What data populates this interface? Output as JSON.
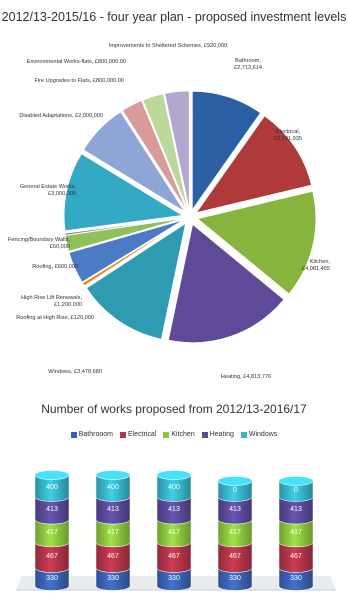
{
  "chart_data": [
    {
      "type": "pie",
      "title": "2012/13-2015/16 - four year plan - proposed investment levels",
      "slices": [
        {
          "label": "Bathroom, £2,713,614",
          "value": 2713614,
          "color": "#2a5fa3"
        },
        {
          "label": "Electrical, £3,191,935",
          "value": 3191935,
          "color": "#b03a3a"
        },
        {
          "label": "Kitchen, £4,081,455",
          "value": 4081455,
          "color": "#86b43c"
        },
        {
          "label": "Heating, £4,813,776",
          "value": 4813776,
          "color": "#5e4a97"
        },
        {
          "label": "Windows, £3,478,680",
          "value": 3478680,
          "color": "#2f9bb0"
        },
        {
          "label": "Roofing at High Rise, £120,000",
          "value": 120000,
          "color": "#ee8a2a"
        },
        {
          "label": "High Rise Lift Renewals, £1,200,000",
          "value": 1200000,
          "color": "#4a7bc4"
        },
        {
          "label": "Roofing, £600,000",
          "value": 600000,
          "color": "#8fc05a"
        },
        {
          "label": "Fencing/Boundary Walls, £60,000",
          "value": 60000,
          "color": "#7a5a9e"
        },
        {
          "label": "General Estate Works, £3,000,000",
          "value": 3000000,
          "color": "#33a9c4"
        },
        {
          "label": "Disabled Adaptations, £2,000,000",
          "value": 2000000,
          "color": "#8ea6d6"
        },
        {
          "label": "Fire Upgrades to Flats, £800,000.00",
          "value": 800000,
          "color": "#d99a9a"
        },
        {
          "label": "Environmental Works-flats, £800,000.00",
          "value": 800000,
          "color": "#bcd89a"
        },
        {
          "label": "Improvements to Sheltered Schemes, £920,000",
          "value": 920000,
          "color": "#b3a7d0"
        }
      ]
    },
    {
      "type": "bar",
      "stacked": true,
      "title": "Number of works proposed from 2012/13-2016/17",
      "legend_position": "top",
      "categories": [
        "",
        "",
        "",
        "",
        ""
      ],
      "series": [
        {
          "name": "Bathrooom",
          "color": "#3a62b3",
          "values": [
            330,
            330,
            330,
            330,
            330
          ]
        },
        {
          "name": "Electrical",
          "color": "#b2344a",
          "values": [
            467,
            467,
            467,
            467,
            467
          ]
        },
        {
          "name": "Kitchen",
          "color": "#8cc63f",
          "values": [
            417,
            417,
            417,
            417,
            417
          ]
        },
        {
          "name": "Heating",
          "color": "#5a4a9a",
          "values": [
            413,
            413,
            413,
            413,
            413
          ]
        },
        {
          "name": "Windows",
          "color": "#36b5c9",
          "values": [
            400,
            400,
            400,
            0,
            0
          ]
        }
      ]
    }
  ]
}
